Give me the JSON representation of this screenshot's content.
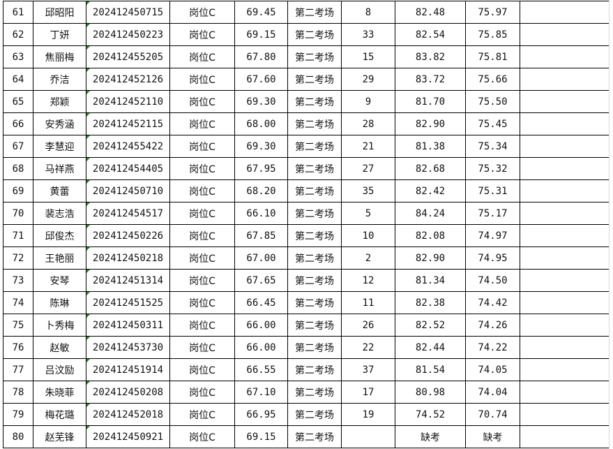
{
  "rows": [
    [
      "61",
      "邱昭阳",
      "202412450715",
      "岗位C",
      "69.45",
      "第二考场",
      "8",
      "82.48",
      "75.97",
      ""
    ],
    [
      "62",
      "丁妍",
      "202412450223",
      "岗位C",
      "69.15",
      "第二考场",
      "33",
      "82.54",
      "75.85",
      ""
    ],
    [
      "63",
      "焦丽梅",
      "202412455205",
      "岗位C",
      "67.80",
      "第二考场",
      "15",
      "83.82",
      "75.81",
      ""
    ],
    [
      "64",
      "乔洁",
      "202412452126",
      "岗位C",
      "67.60",
      "第二考场",
      "29",
      "83.72",
      "75.66",
      ""
    ],
    [
      "65",
      "郑颖",
      "202412452110",
      "岗位C",
      "69.30",
      "第二考场",
      "9",
      "81.70",
      "75.50",
      ""
    ],
    [
      "66",
      "安秀涵",
      "202412452115",
      "岗位C",
      "68.00",
      "第二考场",
      "28",
      "82.90",
      "75.45",
      ""
    ],
    [
      "67",
      "李慧迎",
      "202412455422",
      "岗位C",
      "69.30",
      "第二考场",
      "21",
      "81.38",
      "75.34",
      ""
    ],
    [
      "68",
      "马祥燕",
      "202412454405",
      "岗位C",
      "67.95",
      "第二考场",
      "27",
      "82.68",
      "75.32",
      ""
    ],
    [
      "69",
      "黄蕾",
      "202412450710",
      "岗位C",
      "68.20",
      "第二考场",
      "35",
      "82.42",
      "75.31",
      ""
    ],
    [
      "70",
      "裴志浩",
      "202412454517",
      "岗位C",
      "66.10",
      "第二考场",
      "5",
      "84.24",
      "75.17",
      ""
    ],
    [
      "71",
      "邱俊杰",
      "202412450226",
      "岗位C",
      "67.85",
      "第二考场",
      "10",
      "82.08",
      "74.97",
      ""
    ],
    [
      "72",
      "王艳丽",
      "202412450218",
      "岗位C",
      "67.00",
      "第二考场",
      "2",
      "82.90",
      "74.95",
      ""
    ],
    [
      "73",
      "安琴",
      "202412451314",
      "岗位C",
      "67.65",
      "第二考场",
      "12",
      "81.34",
      "74.50",
      ""
    ],
    [
      "74",
      "陈琳",
      "202412451525",
      "岗位C",
      "66.45",
      "第二考场",
      "11",
      "82.38",
      "74.42",
      ""
    ],
    [
      "75",
      "卜秀梅",
      "202412450311",
      "岗位C",
      "66.00",
      "第二考场",
      "26",
      "82.52",
      "74.26",
      ""
    ],
    [
      "76",
      "赵敏",
      "202412453730",
      "岗位C",
      "66.00",
      "第二考场",
      "22",
      "82.44",
      "74.22",
      ""
    ],
    [
      "77",
      "吕汶励",
      "202412451914",
      "岗位C",
      "66.55",
      "第二考场",
      "37",
      "81.54",
      "74.05",
      ""
    ],
    [
      "78",
      "朱晓菲",
      "202412450208",
      "岗位C",
      "67.10",
      "第二考场",
      "17",
      "80.98",
      "74.04",
      ""
    ],
    [
      "79",
      "梅花璐",
      "202412452018",
      "岗位C",
      "66.95",
      "第二考场",
      "19",
      "74.52",
      "70.74",
      ""
    ],
    [
      "80",
      "赵芜锋",
      "202412450921",
      "岗位C",
      "69.15",
      "第二考场",
      "",
      "缺考",
      "缺考",
      ""
    ]
  ],
  "colors": {
    "grid": "#000000",
    "text_marker": "#1a8a1a"
  }
}
